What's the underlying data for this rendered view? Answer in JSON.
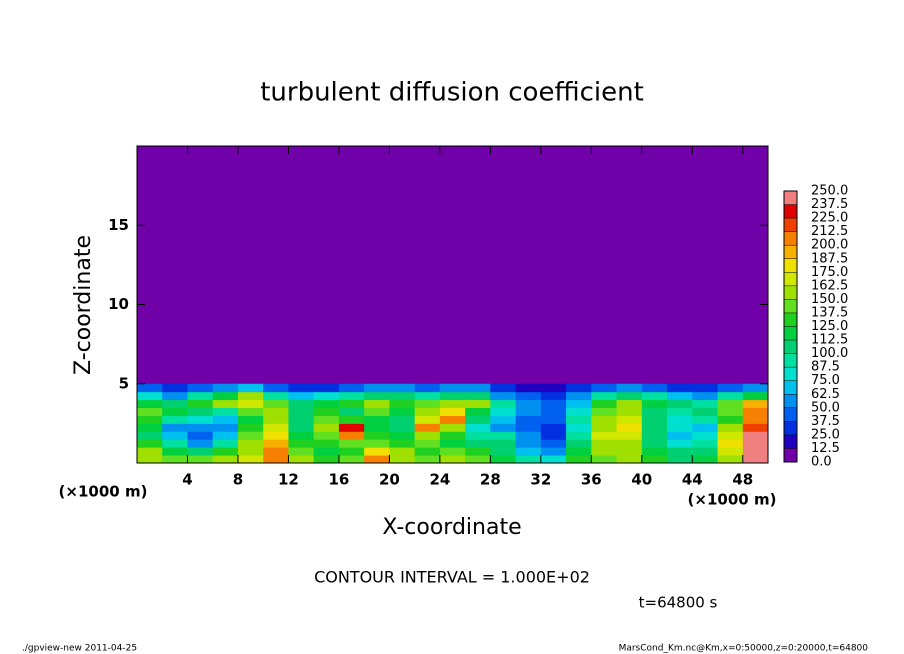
{
  "chart_data": {
    "type": "contour",
    "title": "turbulent diffusion coefficient",
    "x_label": "X-coordinate",
    "y_label": "Z-coordinate",
    "x_unit_label": "(×1000 m)",
    "y_unit_label": "(×1000 m)",
    "xlim": [
      0,
      50
    ],
    "ylim": [
      0,
      20
    ],
    "xticks": [
      4,
      8,
      12,
      16,
      20,
      24,
      28,
      32,
      36,
      40,
      44,
      48
    ],
    "yticks": [
      5,
      10,
      15
    ],
    "x": [
      1,
      3,
      5,
      7,
      9,
      11,
      13,
      15,
      17,
      19,
      21,
      23,
      25,
      27,
      29,
      31,
      33,
      35,
      37,
      39,
      41,
      43,
      45,
      47,
      49
    ],
    "z": [
      0.25,
      0.75,
      1.25,
      1.75,
      2.25,
      2.75,
      3.25,
      3.75,
      4.25,
      4.75
    ],
    "values": [
      [
        160,
        140,
        140,
        150,
        170,
        210,
        150,
        130,
        140,
        200,
        160,
        140,
        150,
        140,
        120,
        90,
        80,
        130,
        140,
        150,
        130,
        110,
        120,
        160,
        250
      ],
      [
        150,
        120,
        100,
        130,
        160,
        200,
        140,
        120,
        130,
        180,
        150,
        130,
        140,
        130,
        110,
        70,
        60,
        120,
        150,
        150,
        120,
        100,
        110,
        170,
        250
      ],
      [
        130,
        90,
        60,
        90,
        150,
        190,
        130,
        130,
        140,
        140,
        130,
        140,
        120,
        110,
        100,
        60,
        40,
        100,
        160,
        160,
        110,
        80,
        90,
        180,
        250
      ],
      [
        110,
        70,
        40,
        70,
        140,
        180,
        120,
        140,
        200,
        130,
        120,
        160,
        130,
        90,
        90,
        50,
        30,
        90,
        170,
        170,
        100,
        70,
        80,
        170,
        240
      ],
      [
        120,
        60,
        50,
        60,
        130,
        170,
        110,
        150,
        230,
        120,
        100,
        210,
        150,
        80,
        60,
        40,
        30,
        80,
        160,
        180,
        110,
        80,
        70,
        150,
        220
      ],
      [
        130,
        90,
        80,
        70,
        120,
        160,
        100,
        140,
        130,
        120,
        110,
        170,
        200,
        100,
        70,
        40,
        40,
        90,
        150,
        170,
        100,
        80,
        90,
        130,
        210
      ],
      [
        140,
        120,
        110,
        90,
        140,
        150,
        110,
        130,
        110,
        140,
        120,
        150,
        180,
        120,
        80,
        50,
        40,
        80,
        140,
        160,
        110,
        90,
        100,
        140,
        200
      ],
      [
        120,
        100,
        130,
        150,
        170,
        140,
        110,
        120,
        130,
        150,
        130,
        140,
        160,
        150,
        90,
        50,
        45,
        70,
        130,
        150,
        120,
        100,
        90,
        140,
        190
      ],
      [
        80,
        60,
        90,
        120,
        160,
        90,
        70,
        80,
        90,
        110,
        100,
        90,
        110,
        100,
        60,
        40,
        35,
        50,
        90,
        110,
        90,
        70,
        60,
        90,
        120
      ],
      [
        40,
        30,
        40,
        60,
        70,
        40,
        30,
        35,
        40,
        60,
        50,
        40,
        60,
        50,
        30,
        20,
        20,
        25,
        40,
        50,
        40,
        35,
        30,
        40,
        60
      ]
    ],
    "levels": [
      {
        "value": 0,
        "label": "0.0"
      },
      {
        "value": 12.5,
        "label": "12.5"
      },
      {
        "value": 25,
        "label": "25.0"
      },
      {
        "value": 37.5,
        "label": "37.5"
      },
      {
        "value": 50,
        "label": "50.0"
      },
      {
        "value": 62.5,
        "label": "62.5"
      },
      {
        "value": 75,
        "label": "75.0"
      },
      {
        "value": 87.5,
        "label": "87.5"
      },
      {
        "value": 100,
        "label": "100.0"
      },
      {
        "value": 112.5,
        "label": "112.5"
      },
      {
        "value": 125,
        "label": "125.0"
      },
      {
        "value": 137.5,
        "label": "137.5"
      },
      {
        "value": 150,
        "label": "150.0"
      },
      {
        "value": 162.5,
        "label": "162.5"
      },
      {
        "value": 175,
        "label": "175.0"
      },
      {
        "value": 187.5,
        "label": "187.5"
      },
      {
        "value": 200,
        "label": "200.0"
      },
      {
        "value": 212.5,
        "label": "212.5"
      },
      {
        "value": 225,
        "label": "225.0"
      },
      {
        "value": 237.5,
        "label": "237.5"
      },
      {
        "value": 250,
        "label": "250.0"
      }
    ],
    "level_colors": [
      "#7000a8",
      "#2000c0",
      "#0030e0",
      "#0060f0",
      "#0090f0",
      "#00c0f0",
      "#00e0d0",
      "#00e0a0",
      "#00d070",
      "#00d040",
      "#20d020",
      "#60e020",
      "#a0e000",
      "#d0e800",
      "#f0e000",
      "#f8b000",
      "#f88000",
      "#f04000",
      "#e00000",
      "#f08080"
    ],
    "contour_interval": "CONTOUR INTERVAL = 1.000E+02",
    "time": "t=64800 s"
  },
  "footer": {
    "left": "./gpview-new  2011-04-25",
    "right": "MarsCond_Km.nc@Km,x=0:50000,z=0:20000,t=64800"
  }
}
